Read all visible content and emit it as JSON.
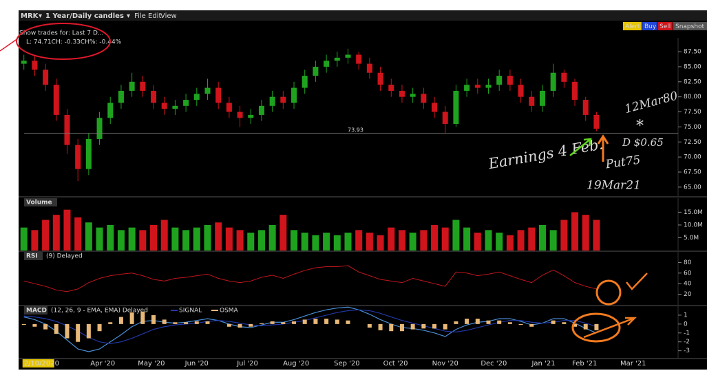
{
  "toolbar": {
    "symbol": "MRK",
    "period": "1 Year/Daily candles",
    "menu": [
      "File",
      "Edit",
      "View"
    ],
    "buttons": [
      "Alert",
      "Buy",
      "Sell",
      "Snapshot"
    ]
  },
  "info": {
    "show_trades": "Show trades for: Last 7 D...",
    "quote": "L: 74.71CH: -0.33CH%: -0.44%"
  },
  "annotations": {
    "earnings": "Earnings 4 Feb.",
    "put": "Put75",
    "expiry": "19Mar21",
    "call": "12Mar80",
    "star": "*",
    "dividend": "D $0.65"
  },
  "chart_data": [
    {
      "type": "candlestick",
      "up_color": "#1fa31f",
      "down_color": "#d0141b",
      "open": [
        85.5,
        86,
        84.5,
        82,
        77,
        72,
        68,
        73,
        76.5,
        79,
        81,
        82.5,
        81,
        79,
        78,
        78.5,
        79.5,
        80.5,
        81.5,
        79,
        77.5,
        76.5,
        77,
        78.5,
        80,
        79,
        81.5,
        83.5,
        85,
        86,
        86.5,
        87,
        85.5,
        84,
        82,
        81,
        80,
        80.5,
        79,
        77.5,
        75.5,
        81,
        82,
        81.5,
        82,
        83.5,
        82,
        80,
        78.5,
        81,
        84,
        82.5,
        79.5,
        77
      ],
      "high": [
        87,
        87,
        85.5,
        83,
        78,
        73,
        74,
        77.5,
        80,
        82,
        84,
        83.5,
        82,
        80,
        79.5,
        80.5,
        81.5,
        83,
        82.5,
        80,
        78.5,
        78,
        79.5,
        81,
        81,
        82.5,
        84.5,
        86,
        87,
        87.5,
        88,
        87.5,
        86.5,
        85,
        83,
        82,
        81.5,
        81.5,
        80,
        78.5,
        82,
        83,
        83,
        83,
        84.5,
        84.5,
        83,
        81,
        82,
        85.5,
        84.5,
        83,
        80,
        77.5
      ],
      "low": [
        84.5,
        83.5,
        81,
        76,
        70.5,
        66,
        67,
        72,
        75.5,
        78,
        80,
        80,
        78,
        77,
        77,
        77.5,
        78.5,
        79.5,
        78,
        76.5,
        75,
        75.5,
        76,
        77.5,
        78,
        78,
        80.5,
        82.5,
        84,
        85,
        85.5,
        84.5,
        83,
        81,
        80,
        79,
        79,
        78,
        76.5,
        74,
        75,
        80,
        80.5,
        80.5,
        81,
        81,
        79,
        77.5,
        77.5,
        80,
        81.5,
        78.5,
        76,
        74.3
      ],
      "close": [
        86,
        84.5,
        82,
        77,
        72,
        68,
        73,
        76.5,
        79,
        81,
        82.5,
        81,
        79,
        78,
        78.5,
        79.5,
        80.5,
        81.5,
        79,
        77.5,
        76.5,
        77,
        78.5,
        80,
        79,
        81.5,
        83.5,
        85,
        86,
        86.5,
        87,
        85.5,
        84,
        82,
        81,
        80,
        80.5,
        79,
        77.5,
        75.5,
        81,
        82,
        81.5,
        82,
        83.5,
        82,
        80,
        78.5,
        81,
        84,
        82.5,
        79.5,
        77,
        74.7
      ],
      "price_line": 73.93,
      "ylim": [
        63.5,
        89.8
      ],
      "yticks": [
        {
          "value": 65,
          "label": "65.00"
        },
        {
          "value": 67.5,
          "label": "67.50"
        },
        {
          "value": 70,
          "label": "70.00"
        },
        {
          "value": 72.5,
          "label": "72.50"
        },
        {
          "value": 75,
          "label": "75.00"
        },
        {
          "value": 77.5,
          "label": "77.50"
        },
        {
          "value": 80,
          "label": "80.00"
        },
        {
          "value": 82.5,
          "label": "82.50"
        },
        {
          "value": 85,
          "label": "85.00"
        },
        {
          "value": 87.5,
          "label": "87.50"
        }
      ],
      "xlim": [
        -0.3,
        59.6
      ],
      "xticks": [
        {
          "value": 0,
          "label": "2/10/2020"
        },
        {
          "value": 7.3,
          "label": "Apr '20"
        },
        {
          "value": 11.8,
          "label": "May '20"
        },
        {
          "value": 16,
          "label": "Jun '20"
        },
        {
          "value": 20.7,
          "label": "Jul '20"
        },
        {
          "value": 25.2,
          "label": "Aug '20"
        },
        {
          "value": 29.9,
          "label": "Sep '20"
        },
        {
          "value": 34.4,
          "label": "Oct '20"
        },
        {
          "value": 39,
          "label": "Nov '20"
        },
        {
          "value": 43.5,
          "label": "Dec '20"
        },
        {
          "value": 48.1,
          "label": "Jan '21"
        },
        {
          "value": 51.9,
          "label": "Feb '21"
        },
        {
          "value": 56.4,
          "label": "Mar '21"
        }
      ]
    },
    {
      "type": "bar",
      "title": "Volume",
      "values": [
        9000000,
        8000000,
        12000000,
        14000000,
        16000000,
        13000000,
        11000000,
        9000000,
        10000000,
        8000000,
        9000000,
        8000000,
        10000000,
        12000000,
        9000000,
        8000000,
        9000000,
        10000000,
        11000000,
        9000000,
        8000000,
        7000000,
        8000000,
        10000000,
        14000000,
        8000000,
        7000000,
        6000000,
        7000000,
        6000000,
        7000000,
        8000000,
        7000000,
        6000000,
        9000000,
        8000000,
        7000000,
        8000000,
        10000000,
        9000000,
        12000000,
        9000000,
        7000000,
        8000000,
        7000000,
        6000000,
        8000000,
        9000000,
        10000000,
        8000000,
        12000000,
        15000000,
        14000000,
        12000000
      ],
      "ylim": [
        0,
        20500000
      ],
      "yticks": [
        {
          "value": 5000000,
          "label": "5.0M"
        },
        {
          "value": 10000000,
          "label": "10.0M"
        },
        {
          "value": 15000000,
          "label": "15.0M"
        }
      ]
    },
    {
      "type": "line",
      "title": "RSI",
      "subtitle": "(9) Delayed",
      "color": "#c0161c",
      "values": [
        45,
        40,
        35,
        28,
        25,
        30,
        42,
        50,
        55,
        58,
        60,
        55,
        48,
        45,
        50,
        52,
        55,
        58,
        50,
        45,
        42,
        45,
        52,
        56,
        50,
        58,
        65,
        70,
        72,
        72,
        74,
        62,
        55,
        48,
        45,
        42,
        50,
        45,
        40,
        35,
        62,
        60,
        55,
        58,
        62,
        55,
        48,
        42,
        56,
        66,
        55,
        42,
        35,
        30
      ],
      "ylim": [
        0,
        100
      ],
      "yticks": [
        20,
        40,
        60,
        80
      ]
    },
    {
      "type": "macd",
      "title": "MACD",
      "subtitle": "(12, 26, 9 - EMA, EMA) Delayed",
      "series": [
        {
          "color": "#4a8fd8",
          "values": [
            0.8,
            0.5,
            0,
            -0.8,
            -1.8,
            -2.8,
            -3.1,
            -2.8,
            -2,
            -1.2,
            -0.3,
            0.3,
            0.4,
            0.2,
            0.1,
            0.2,
            0.4,
            0.6,
            0.4,
            0,
            -0.3,
            -0.4,
            -0.1,
            0.2,
            0.2,
            0.5,
            0.9,
            1.3,
            1.6,
            1.8,
            1.9,
            1.6,
            1.1,
            0.5,
            0,
            -0.4,
            -0.5,
            -0.7,
            -1,
            -1.4,
            -0.6,
            -0.1,
            0.2,
            0.3,
            0.6,
            0.6,
            0.3,
            -0.1,
            0.1,
            0.6,
            0.6,
            0.1,
            -0.5,
            -1
          ]
        },
        {
          "name": "SIGNAL",
          "color": "#2238a8",
          "values": [
            0.9,
            0.8,
            0.6,
            0.3,
            -0.2,
            -0.8,
            -1.5,
            -2,
            -2.2,
            -2,
            -1.6,
            -1.1,
            -0.6,
            -0.3,
            -0.1,
            0,
            0.1,
            0.3,
            0.4,
            0.3,
            0.1,
            -0.1,
            -0.2,
            -0.1,
            0,
            0.2,
            0.4,
            0.7,
            1,
            1.3,
            1.5,
            1.6,
            1.5,
            1.2,
            0.8,
            0.4,
            0.1,
            -0.2,
            -0.5,
            -0.8,
            -0.9,
            -0.7,
            -0.4,
            -0.1,
            0.2,
            0.4,
            0.4,
            0.2,
            0.1,
            0.2,
            0.4,
            0.4,
            0.1,
            -0.3
          ]
        },
        {
          "name": "OSMA",
          "color": "#e8b878",
          "values": [
            -0.1,
            -0.3,
            -0.6,
            -1.1,
            -1.6,
            -2,
            -1.6,
            -0.8,
            0.2,
            0.8,
            1.3,
            1.4,
            1,
            0.5,
            0.2,
            0.2,
            0.3,
            0.3,
            0,
            -0.3,
            -0.4,
            -0.3,
            0.1,
            0.3,
            0.2,
            0.3,
            0.5,
            0.6,
            0.6,
            0.5,
            0.4,
            0,
            -0.4,
            -0.7,
            -0.8,
            -0.8,
            -0.6,
            -0.5,
            -0.5,
            -0.6,
            0.3,
            0.6,
            0.6,
            0.4,
            0.4,
            0.2,
            -0.1,
            -0.3,
            0,
            0.4,
            0.2,
            -0.3,
            -0.6,
            -0.7
          ]
        }
      ],
      "ylim": [
        -3.8,
        2
      ],
      "yticks": [
        -3,
        -2,
        -1,
        0,
        1
      ]
    }
  ]
}
